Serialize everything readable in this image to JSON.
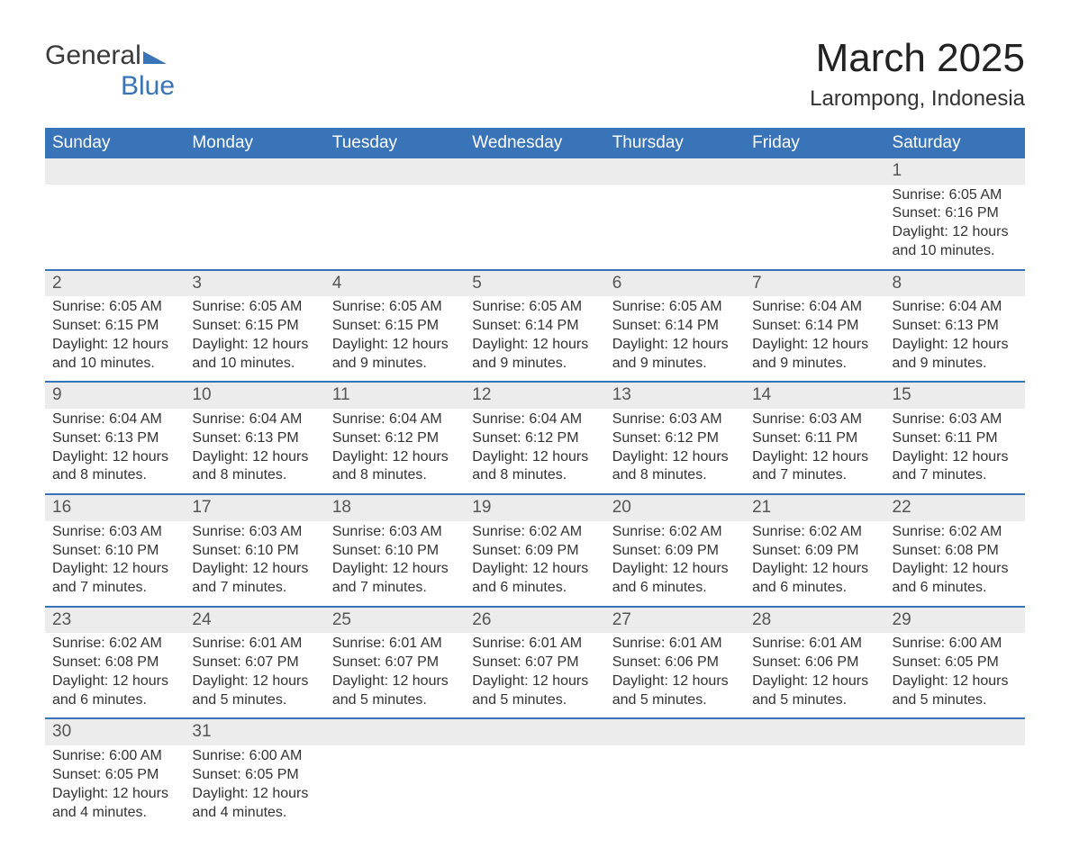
{
  "logo": {
    "word1": "General",
    "word2": "Blue"
  },
  "title": "March 2025",
  "location": "Larompong, Indonesia",
  "colors": {
    "header_bg": "#3a74b8",
    "header_text": "#ffffff",
    "daynum_bg": "#ececec",
    "row_border": "#3a74b8",
    "body_text": "#333333",
    "page_bg": "#ffffff"
  },
  "day_headers": [
    "Sunday",
    "Monday",
    "Tuesday",
    "Wednesday",
    "Thursday",
    "Friday",
    "Saturday"
  ],
  "weeks": [
    {
      "nums": [
        "",
        "",
        "",
        "",
        "",
        "",
        "1"
      ],
      "cells": [
        null,
        null,
        null,
        null,
        null,
        null,
        {
          "sunrise": "Sunrise: 6:05 AM",
          "sunset": "Sunset: 6:16 PM",
          "dl1": "Daylight: 12 hours",
          "dl2": "and 10 minutes."
        }
      ]
    },
    {
      "nums": [
        "2",
        "3",
        "4",
        "5",
        "6",
        "7",
        "8"
      ],
      "cells": [
        {
          "sunrise": "Sunrise: 6:05 AM",
          "sunset": "Sunset: 6:15 PM",
          "dl1": "Daylight: 12 hours",
          "dl2": "and 10 minutes."
        },
        {
          "sunrise": "Sunrise: 6:05 AM",
          "sunset": "Sunset: 6:15 PM",
          "dl1": "Daylight: 12 hours",
          "dl2": "and 10 minutes."
        },
        {
          "sunrise": "Sunrise: 6:05 AM",
          "sunset": "Sunset: 6:15 PM",
          "dl1": "Daylight: 12 hours",
          "dl2": "and 9 minutes."
        },
        {
          "sunrise": "Sunrise: 6:05 AM",
          "sunset": "Sunset: 6:14 PM",
          "dl1": "Daylight: 12 hours",
          "dl2": "and 9 minutes."
        },
        {
          "sunrise": "Sunrise: 6:05 AM",
          "sunset": "Sunset: 6:14 PM",
          "dl1": "Daylight: 12 hours",
          "dl2": "and 9 minutes."
        },
        {
          "sunrise": "Sunrise: 6:04 AM",
          "sunset": "Sunset: 6:14 PM",
          "dl1": "Daylight: 12 hours",
          "dl2": "and 9 minutes."
        },
        {
          "sunrise": "Sunrise: 6:04 AM",
          "sunset": "Sunset: 6:13 PM",
          "dl1": "Daylight: 12 hours",
          "dl2": "and 9 minutes."
        }
      ]
    },
    {
      "nums": [
        "9",
        "10",
        "11",
        "12",
        "13",
        "14",
        "15"
      ],
      "cells": [
        {
          "sunrise": "Sunrise: 6:04 AM",
          "sunset": "Sunset: 6:13 PM",
          "dl1": "Daylight: 12 hours",
          "dl2": "and 8 minutes."
        },
        {
          "sunrise": "Sunrise: 6:04 AM",
          "sunset": "Sunset: 6:13 PM",
          "dl1": "Daylight: 12 hours",
          "dl2": "and 8 minutes."
        },
        {
          "sunrise": "Sunrise: 6:04 AM",
          "sunset": "Sunset: 6:12 PM",
          "dl1": "Daylight: 12 hours",
          "dl2": "and 8 minutes."
        },
        {
          "sunrise": "Sunrise: 6:04 AM",
          "sunset": "Sunset: 6:12 PM",
          "dl1": "Daylight: 12 hours",
          "dl2": "and 8 minutes."
        },
        {
          "sunrise": "Sunrise: 6:03 AM",
          "sunset": "Sunset: 6:12 PM",
          "dl1": "Daylight: 12 hours",
          "dl2": "and 8 minutes."
        },
        {
          "sunrise": "Sunrise: 6:03 AM",
          "sunset": "Sunset: 6:11 PM",
          "dl1": "Daylight: 12 hours",
          "dl2": "and 7 minutes."
        },
        {
          "sunrise": "Sunrise: 6:03 AM",
          "sunset": "Sunset: 6:11 PM",
          "dl1": "Daylight: 12 hours",
          "dl2": "and 7 minutes."
        }
      ]
    },
    {
      "nums": [
        "16",
        "17",
        "18",
        "19",
        "20",
        "21",
        "22"
      ],
      "cells": [
        {
          "sunrise": "Sunrise: 6:03 AM",
          "sunset": "Sunset: 6:10 PM",
          "dl1": "Daylight: 12 hours",
          "dl2": "and 7 minutes."
        },
        {
          "sunrise": "Sunrise: 6:03 AM",
          "sunset": "Sunset: 6:10 PM",
          "dl1": "Daylight: 12 hours",
          "dl2": "and 7 minutes."
        },
        {
          "sunrise": "Sunrise: 6:03 AM",
          "sunset": "Sunset: 6:10 PM",
          "dl1": "Daylight: 12 hours",
          "dl2": "and 7 minutes."
        },
        {
          "sunrise": "Sunrise: 6:02 AM",
          "sunset": "Sunset: 6:09 PM",
          "dl1": "Daylight: 12 hours",
          "dl2": "and 6 minutes."
        },
        {
          "sunrise": "Sunrise: 6:02 AM",
          "sunset": "Sunset: 6:09 PM",
          "dl1": "Daylight: 12 hours",
          "dl2": "and 6 minutes."
        },
        {
          "sunrise": "Sunrise: 6:02 AM",
          "sunset": "Sunset: 6:09 PM",
          "dl1": "Daylight: 12 hours",
          "dl2": "and 6 minutes."
        },
        {
          "sunrise": "Sunrise: 6:02 AM",
          "sunset": "Sunset: 6:08 PM",
          "dl1": "Daylight: 12 hours",
          "dl2": "and 6 minutes."
        }
      ]
    },
    {
      "nums": [
        "23",
        "24",
        "25",
        "26",
        "27",
        "28",
        "29"
      ],
      "cells": [
        {
          "sunrise": "Sunrise: 6:02 AM",
          "sunset": "Sunset: 6:08 PM",
          "dl1": "Daylight: 12 hours",
          "dl2": "and 6 minutes."
        },
        {
          "sunrise": "Sunrise: 6:01 AM",
          "sunset": "Sunset: 6:07 PM",
          "dl1": "Daylight: 12 hours",
          "dl2": "and 5 minutes."
        },
        {
          "sunrise": "Sunrise: 6:01 AM",
          "sunset": "Sunset: 6:07 PM",
          "dl1": "Daylight: 12 hours",
          "dl2": "and 5 minutes."
        },
        {
          "sunrise": "Sunrise: 6:01 AM",
          "sunset": "Sunset: 6:07 PM",
          "dl1": "Daylight: 12 hours",
          "dl2": "and 5 minutes."
        },
        {
          "sunrise": "Sunrise: 6:01 AM",
          "sunset": "Sunset: 6:06 PM",
          "dl1": "Daylight: 12 hours",
          "dl2": "and 5 minutes."
        },
        {
          "sunrise": "Sunrise: 6:01 AM",
          "sunset": "Sunset: 6:06 PM",
          "dl1": "Daylight: 12 hours",
          "dl2": "and 5 minutes."
        },
        {
          "sunrise": "Sunrise: 6:00 AM",
          "sunset": "Sunset: 6:05 PM",
          "dl1": "Daylight: 12 hours",
          "dl2": "and 5 minutes."
        }
      ]
    },
    {
      "nums": [
        "30",
        "31",
        "",
        "",
        "",
        "",
        ""
      ],
      "cells": [
        {
          "sunrise": "Sunrise: 6:00 AM",
          "sunset": "Sunset: 6:05 PM",
          "dl1": "Daylight: 12 hours",
          "dl2": "and 4 minutes."
        },
        {
          "sunrise": "Sunrise: 6:00 AM",
          "sunset": "Sunset: 6:05 PM",
          "dl1": "Daylight: 12 hours",
          "dl2": "and 4 minutes."
        },
        null,
        null,
        null,
        null,
        null
      ]
    }
  ]
}
